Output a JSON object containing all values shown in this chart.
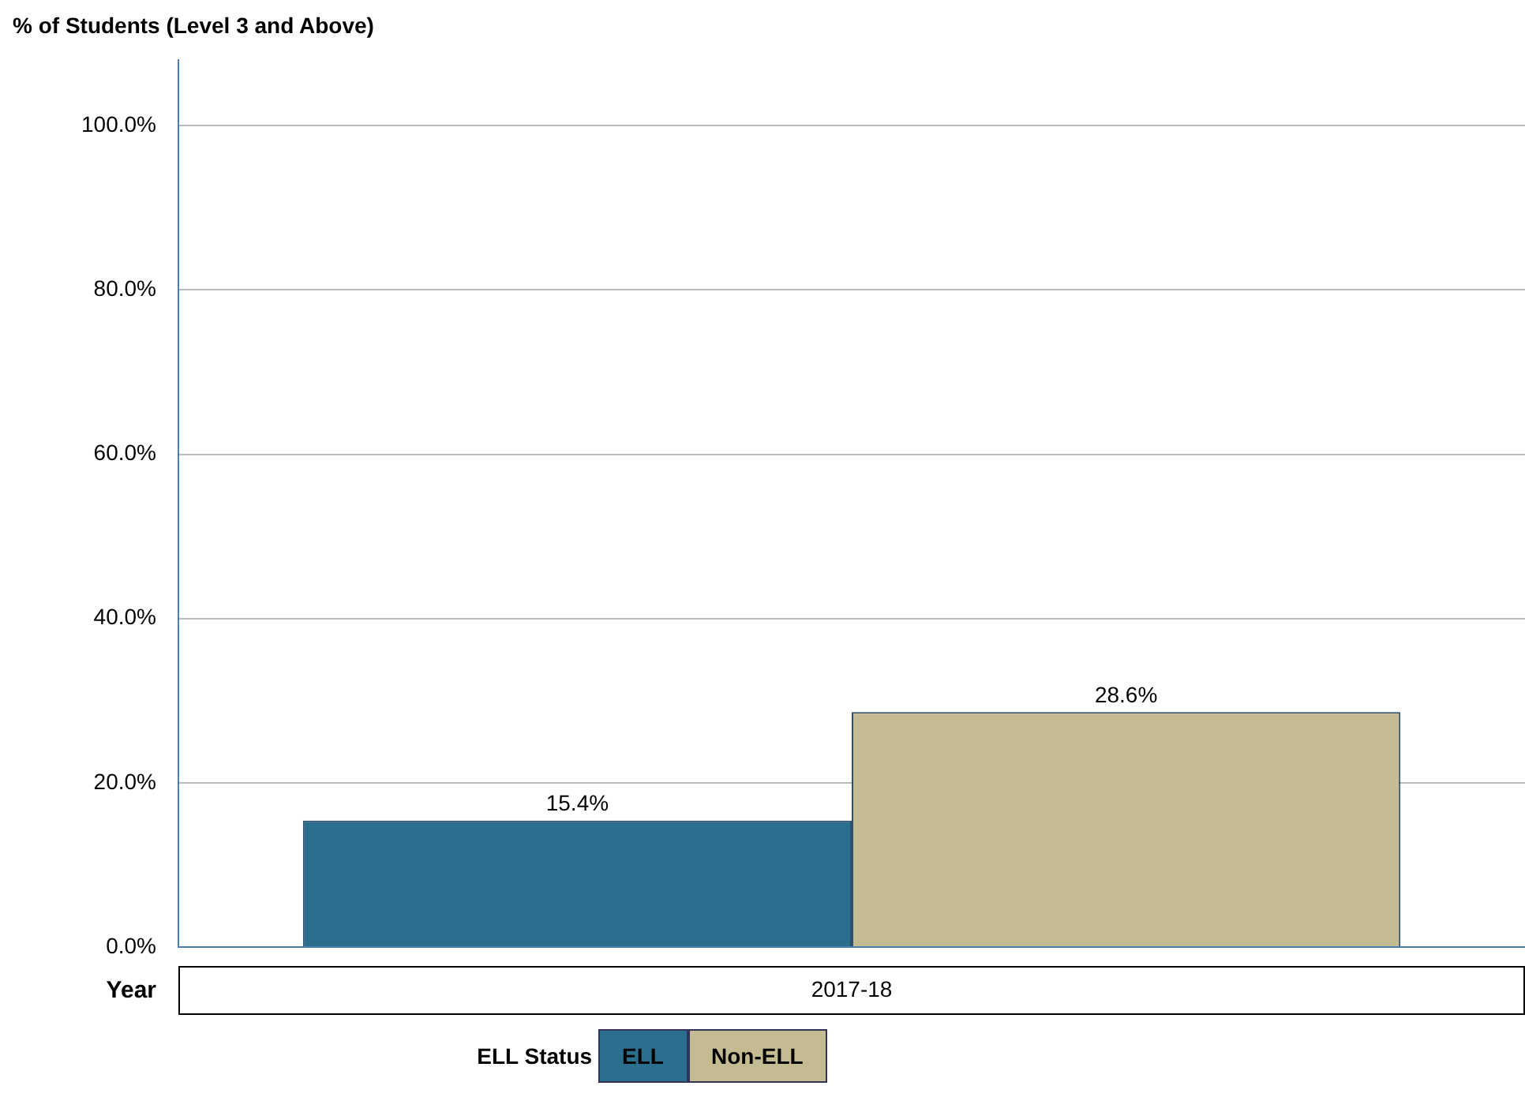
{
  "chart_data": {
    "type": "bar",
    "ylabel": "% of Students (Level 3 and Above)",
    "xlabel": "Year",
    "legend_title": "ELL Status",
    "categories": [
      "2017-18"
    ],
    "series": [
      {
        "name": "ELL",
        "color": "#2b6f8f",
        "values": [
          15.4
        ],
        "value_labels": [
          "15.4%"
        ]
      },
      {
        "name": "Non-ELL",
        "color": "#c4bb93",
        "values": [
          28.6
        ],
        "value_labels": [
          "28.6%"
        ]
      }
    ],
    "ylim": [
      0,
      108
    ],
    "yticks": [
      {
        "value": 0,
        "label": "0.0%"
      },
      {
        "value": 20,
        "label": "20.0%"
      },
      {
        "value": 40,
        "label": "40.0%"
      },
      {
        "value": 60,
        "label": "60.0%"
      },
      {
        "value": 80,
        "label": "80.0%"
      },
      {
        "value": 100,
        "label": "100.0%"
      }
    ],
    "grid": "y",
    "legend": "bottom"
  }
}
